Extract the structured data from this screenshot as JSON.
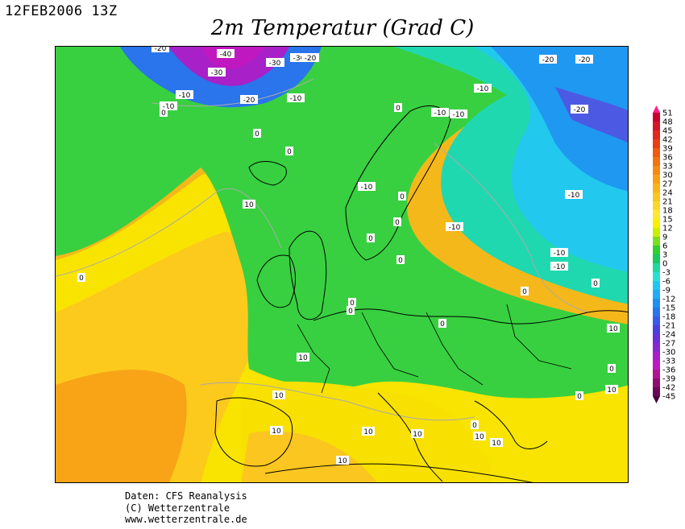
{
  "header": {
    "timestamp": "12FEB2006 13Z",
    "title": "2m Temperatur (Grad C)"
  },
  "legend": {
    "levels": [
      "51",
      "48",
      "45",
      "42",
      "39",
      "36",
      "33",
      "30",
      "27",
      "24",
      "21",
      "18",
      "15",
      "12",
      "9",
      "6",
      "3",
      "0",
      "-3",
      "-6",
      "-9",
      "-12",
      "-15",
      "-18",
      "-21",
      "-24",
      "-27",
      "-30",
      "-33",
      "-36",
      "-39",
      "-42",
      "-45"
    ],
    "colors": [
      "#ff1f8f",
      "#c8002d",
      "#d41428",
      "#e02a1e",
      "#e83e14",
      "#ee5a0e",
      "#f27210",
      "#f58a12",
      "#f7a016",
      "#f9b41a",
      "#fbc620",
      "#fdd82a",
      "#ffe830",
      "#f8f000",
      "#c8f000",
      "#78e020",
      "#30d030",
      "#18c860",
      "#20d8a0",
      "#28e0d0",
      "#20c8f0",
      "#1eacf4",
      "#2090f0",
      "#2a74ec",
      "#3a5ae8",
      "#4a40e0",
      "#6a30d8",
      "#8a28d0",
      "#a820c8",
      "#c018c0",
      "#b01490",
      "#900c70",
      "#6a0858",
      "#480040"
    ]
  },
  "map": {
    "isotherm_labels": [
      "-20",
      "-40",
      "-30",
      "-30",
      "-40",
      "-20",
      "-30",
      "-10",
      "-20",
      "-10",
      "-10",
      "0",
      "0",
      "0",
      "0",
      "-10",
      "-10",
      "-10",
      "-20",
      "-20",
      "-20",
      "0",
      "0",
      "0",
      "-10",
      "0",
      "10",
      "10",
      "0",
      "0",
      "-10",
      "-10",
      "0",
      "0",
      "-10",
      "-10",
      "10",
      "0",
      "0",
      "0",
      "10",
      "0",
      "0",
      "10",
      "10",
      "10",
      "10",
      "10",
      "0",
      "10",
      "10",
      "10"
    ]
  },
  "credits": {
    "line1": "Daten: CFS Reanalysis",
    "line2": "(C) Wetterzentrale",
    "line3": "www.wetterzentrale.de"
  }
}
